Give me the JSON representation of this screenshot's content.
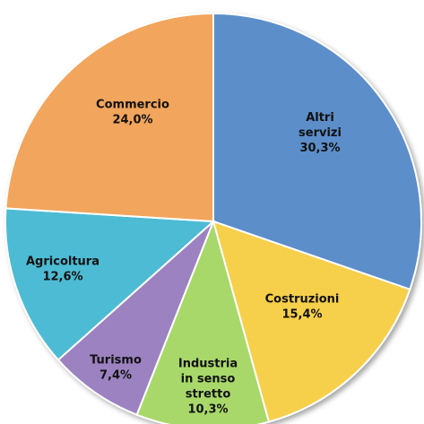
{
  "chart_data": {
    "type": "pie",
    "title": "",
    "slices": [
      {
        "label_lines": [
          "Altri",
          "servizi"
        ],
        "value_label": "30,3%",
        "value": 30.3,
        "color": "#5B8EC9"
      },
      {
        "label_lines": [
          "Costruzioni"
        ],
        "value_label": "15,4%",
        "value": 15.4,
        "color": "#F6CF4C"
      },
      {
        "label_lines": [
          "Industria",
          "in senso",
          "stretto"
        ],
        "value_label": "10,3%",
        "value": 10.3,
        "color": "#A8D86A"
      },
      {
        "label_lines": [
          "Turismo"
        ],
        "value_label": "7,4%",
        "value": 7.4,
        "color": "#9C82C1"
      },
      {
        "label_lines": [
          "Agricoltura"
        ],
        "value_label": "12,6%",
        "value": 12.6,
        "color": "#4DBBD3"
      },
      {
        "label_lines": [
          "Commercio"
        ],
        "value_label": "24,0%",
        "value": 24.0,
        "color": "#F2A55B"
      }
    ]
  }
}
